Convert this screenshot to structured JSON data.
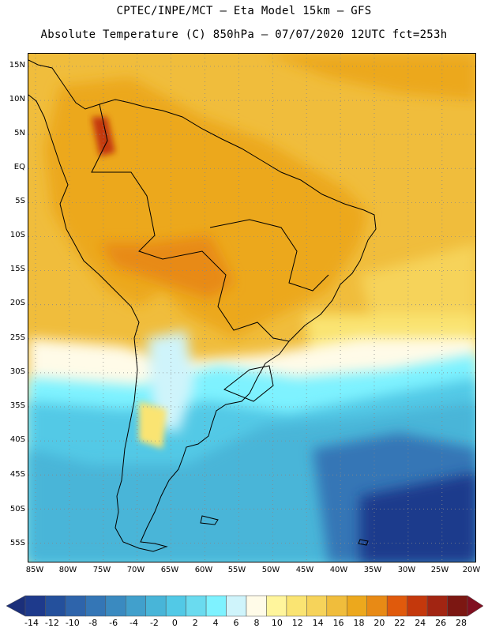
{
  "title_line1": "CPTEC/INPE/MCT –  Eta Model 15km – GFS",
  "title_line2": "Absolute Temperature (C) 850hPa – 07/07/2020 12UTC fct=253h",
  "lat_labels": [
    "15N",
    "10N",
    "5N",
    "EQ",
    "5S",
    "10S",
    "15S",
    "20S",
    "25S",
    "30S",
    "35S",
    "40S",
    "45S",
    "50S",
    "55S"
  ],
  "lon_labels": [
    "85W",
    "80W",
    "75W",
    "70W",
    "65W",
    "60W",
    "55W",
    "50W",
    "45W",
    "40W",
    "35W",
    "30W",
    "25W",
    "20W"
  ],
  "colorbar": {
    "labels": [
      "-14",
      "-12",
      "-10",
      "-8",
      "-6",
      "-4",
      "-2",
      "0",
      "2",
      "4",
      "6",
      "8",
      "10",
      "12",
      "14",
      "16",
      "18",
      "20",
      "22",
      "24",
      "26",
      "28"
    ],
    "colors": [
      "#1e3a8c",
      "#24509c",
      "#2e64ab",
      "#3476b6",
      "#3a8ac0",
      "#41a0cc",
      "#48b5d8",
      "#52c9e6",
      "#6adbef",
      "#7ef2ff",
      "#cff4fb",
      "#fffbe8",
      "#fff59c",
      "#fae472",
      "#f6d35a",
      "#f0bd3c",
      "#eca81d",
      "#e88a15",
      "#e05a0c",
      "#c4380c",
      "#a22512",
      "#7c1712"
    ],
    "under_color": "#1b2f7a",
    "over_color": "#800f20"
  }
}
